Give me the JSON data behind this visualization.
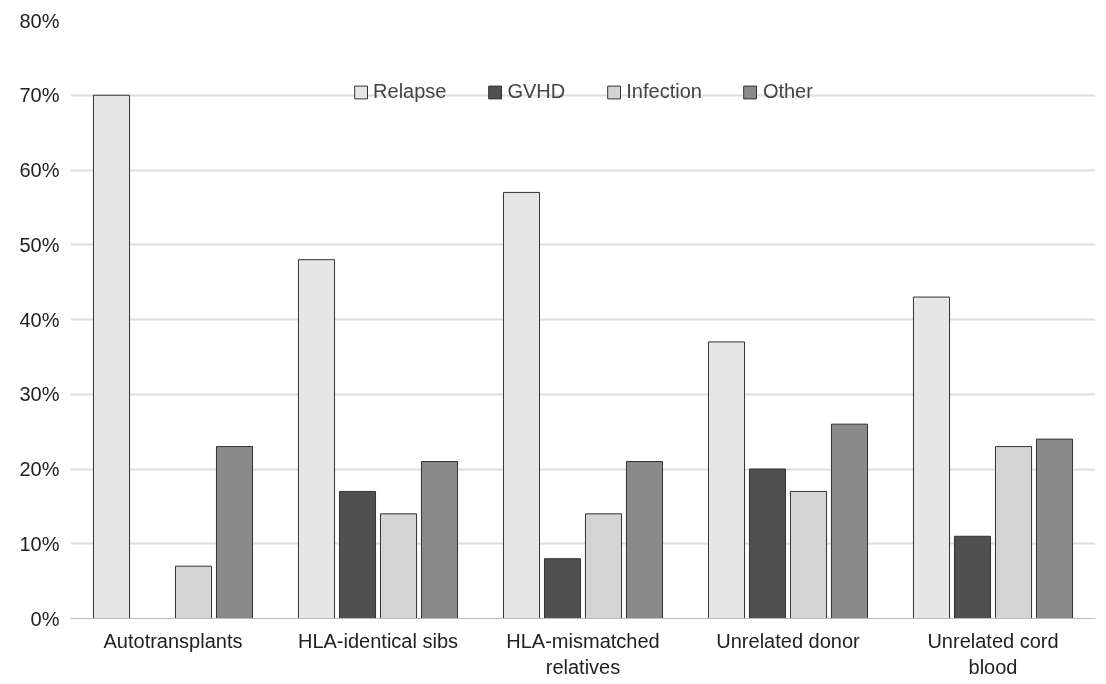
{
  "chart_data": {
    "type": "bar",
    "categories": [
      "Autotransplants",
      "HLA-identical sibs",
      "HLA-mismatched relatives",
      "Unrelated donor",
      "Unrelated cord blood"
    ],
    "series": [
      {
        "name": "Relapse",
        "color": "#e6e6e6",
        "values": [
          70,
          48,
          57,
          37,
          43
        ]
      },
      {
        "name": "GVHD",
        "color": "#505050",
        "values": [
          null,
          17,
          8,
          20,
          11
        ]
      },
      {
        "name": "Infection",
        "color": "#d4d4d4",
        "values": [
          7,
          14,
          14,
          17,
          23
        ]
      },
      {
        "name": "Other",
        "color": "#8a8a8a",
        "values": [
          23,
          21,
          21,
          26,
          24
        ]
      }
    ],
    "ylim": [
      0,
      80
    ],
    "yticks": [
      {
        "value": 0,
        "label": "0%"
      },
      {
        "value": 10,
        "label": "10%"
      },
      {
        "value": 20,
        "label": "20%"
      },
      {
        "value": 30,
        "label": "30%"
      },
      {
        "value": 40,
        "label": "40%"
      },
      {
        "value": 50,
        "label": "50%"
      },
      {
        "value": 60,
        "label": "60%"
      },
      {
        "value": 70,
        "label": "70%"
      },
      {
        "value": 80,
        "label": "80%"
      }
    ],
    "grid": "y",
    "legend": "top"
  }
}
